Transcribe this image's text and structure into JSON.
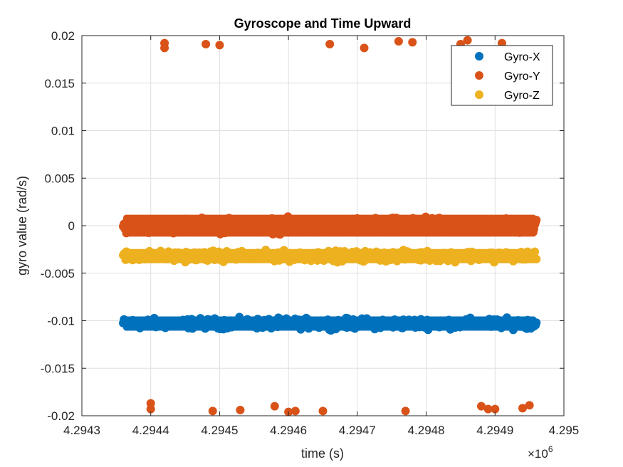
{
  "chart_data": {
    "type": "scatter",
    "title": "Gyroscope and Time Upward",
    "xlabel": "time (s)",
    "ylabel": "gyro value (rad/s)",
    "x_exponent_label": "×10",
    "x_exponent_power": "6",
    "x_scale": 1000000,
    "xlim": [
      4.2943,
      4.295
    ],
    "ylim": [
      -0.02,
      0.02
    ],
    "x_ticks": [
      4.2943,
      4.2944,
      4.2945,
      4.2946,
      4.2947,
      4.2948,
      4.2949,
      4.295
    ],
    "x_tick_labels": [
      "4.2943",
      "4.2944",
      "4.2945",
      "4.2946",
      "4.2947",
      "4.2948",
      "4.2949",
      "4.295"
    ],
    "y_ticks": [
      0.02,
      0.015,
      0.01,
      0.005,
      0,
      -0.005,
      -0.01,
      -0.015,
      -0.02
    ],
    "y_tick_labels": [
      "0.02",
      "0.015",
      "0.01",
      "0.005",
      "0",
      "-0.005",
      "-0.01",
      "-0.015",
      "-0.02"
    ],
    "grid": true,
    "legend_position": "top-right",
    "x_range_data": [
      4.29436,
      4.29496
    ],
    "series": [
      {
        "name": "Gyro-X",
        "color": "#0072bd",
        "center": -0.0103,
        "band_halfwidth": 0.0009,
        "outliers": []
      },
      {
        "name": "Gyro-Y",
        "color": "#d95319",
        "center": 0.0,
        "band_halfwidth": 0.0013,
        "outliers": [
          [
            4.29442,
            0.0187
          ],
          [
            4.29442,
            0.0192
          ],
          [
            4.29448,
            0.0191
          ],
          [
            4.2945,
            0.019
          ],
          [
            4.29466,
            0.0191
          ],
          [
            4.29471,
            0.0187
          ],
          [
            4.29476,
            0.0194
          ],
          [
            4.29478,
            0.0193
          ],
          [
            4.29485,
            0.0191
          ],
          [
            4.29486,
            0.0195
          ],
          [
            4.29491,
            0.0192
          ],
          [
            4.2944,
            -0.0187
          ],
          [
            4.2944,
            -0.0193
          ],
          [
            4.29449,
            -0.0195
          ],
          [
            4.29453,
            -0.0194
          ],
          [
            4.29458,
            -0.019
          ],
          [
            4.2946,
            -0.0196
          ],
          [
            4.29461,
            -0.0195
          ],
          [
            4.29465,
            -0.0195
          ],
          [
            4.29477,
            -0.0195
          ],
          [
            4.29488,
            -0.019
          ],
          [
            4.29489,
            -0.0193
          ],
          [
            4.2949,
            -0.0193
          ],
          [
            4.29494,
            -0.0192
          ],
          [
            4.29495,
            -0.0189
          ]
        ]
      },
      {
        "name": "Gyro-Z",
        "color": "#edb120",
        "center": -0.0032,
        "band_halfwidth": 0.0009,
        "outliers": []
      }
    ]
  }
}
